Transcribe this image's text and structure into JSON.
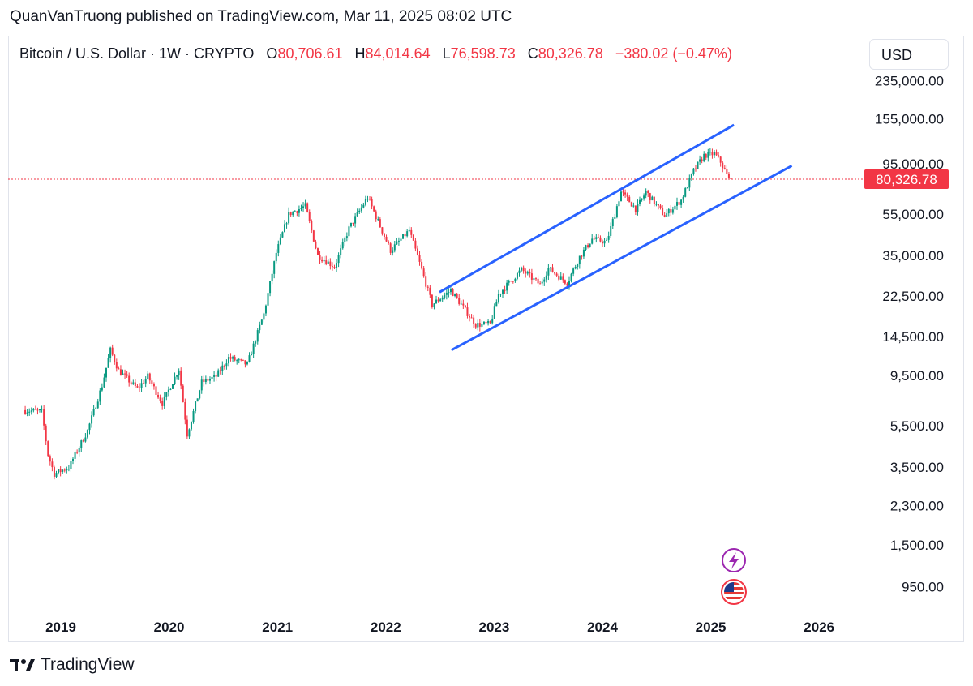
{
  "header": {
    "published": "QuanVanTruong published on TradingView.com, Mar 11, 2025 08:02 UTC"
  },
  "legend": {
    "symbol": "Bitcoin / U.S. Dollar · 1W · CRYPTO",
    "o_key": "O",
    "o_val": "80,706.61",
    "h_key": "H",
    "h_val": "84,014.64",
    "l_key": "L",
    "l_val": "76,598.73",
    "c_key": "C",
    "c_val": "80,326.78",
    "change": "−380.02 (−0.47%)"
  },
  "currency": "USD",
  "price_label": "80,326.78",
  "footer": {
    "brand": "TradingView"
  },
  "icons": [
    "lightning-event-icon",
    "us-flag-event-icon",
    "tradingview-logo-icon"
  ],
  "colors": {
    "up": "#089981",
    "down": "#f23645",
    "channel": "#2962ff",
    "price_line": "#f23645",
    "label_bg": "#f23645",
    "event_purple": "#9c27b0"
  },
  "chart_data": {
    "type": "candlestick",
    "interval": "1W",
    "scale": "log",
    "x_ticks": [
      "2019",
      "2020",
      "2021",
      "2022",
      "2023",
      "2024",
      "2025",
      "2026"
    ],
    "y_ticks": [
      235000,
      155000,
      95000,
      55000,
      35000,
      22500,
      14500,
      9500,
      5500,
      3500,
      2300,
      1500,
      950
    ],
    "y_tick_labels": [
      "235,000.00",
      "155,000.00",
      "95,000.00",
      "55,000.00",
      "35,000.00",
      "22,500.00",
      "14,500.00",
      "9,500.00",
      "5,500.00",
      "3,500.00",
      "2,300.00",
      "1,500.00",
      "950.00"
    ],
    "last_price": 80326.78,
    "price_path": [
      [
        "2018-09-03",
        6500
      ],
      [
        "2018-11-05",
        6400
      ],
      [
        "2018-11-26",
        4000
      ],
      [
        "2018-12-17",
        3250
      ],
      [
        "2019-02-04",
        3500
      ],
      [
        "2019-04-08",
        5200
      ],
      [
        "2019-05-27",
        8500
      ],
      [
        "2019-06-24",
        12500
      ],
      [
        "2019-07-22",
        10000
      ],
      [
        "2019-09-23",
        8200
      ],
      [
        "2019-10-28",
        9400
      ],
      [
        "2019-12-16",
        7000
      ],
      [
        "2020-02-10",
        10200
      ],
      [
        "2020-03-09",
        5000
      ],
      [
        "2020-04-27",
        8800
      ],
      [
        "2020-06-15",
        9400
      ],
      [
        "2020-07-27",
        11500
      ],
      [
        "2020-09-28",
        10700
      ],
      [
        "2020-11-23",
        18500
      ],
      [
        "2021-01-04",
        36000
      ],
      [
        "2021-02-15",
        55000
      ],
      [
        "2021-04-12",
        60000
      ],
      [
        "2021-05-24",
        35000
      ],
      [
        "2021-07-19",
        31000
      ],
      [
        "2021-09-06",
        47000
      ],
      [
        "2021-11-08",
        66000
      ],
      [
        "2022-01-24",
        37000
      ],
      [
        "2022-03-28",
        46000
      ],
      [
        "2022-05-09",
        30000
      ],
      [
        "2022-06-13",
        20500
      ],
      [
        "2022-08-15",
        24000
      ],
      [
        "2022-11-07",
        16500
      ],
      [
        "2022-12-26",
        16600
      ],
      [
        "2023-01-23",
        23000
      ],
      [
        "2023-04-10",
        30000
      ],
      [
        "2023-06-12",
        25500
      ],
      [
        "2023-07-10",
        30500
      ],
      [
        "2023-09-11",
        26000
      ],
      [
        "2023-10-23",
        34500
      ],
      [
        "2023-12-04",
        42000
      ],
      [
        "2024-01-22",
        40500
      ],
      [
        "2024-03-11",
        70000
      ],
      [
        "2024-05-01",
        58000
      ],
      [
        "2024-06-03",
        70000
      ],
      [
        "2024-08-05",
        54000
      ],
      [
        "2024-09-30",
        64000
      ],
      [
        "2024-11-11",
        88000
      ],
      [
        "2024-12-16",
        104000
      ],
      [
        "2025-01-20",
        106000
      ],
      [
        "2025-02-10",
        97000
      ],
      [
        "2025-03-10",
        80326.78
      ]
    ],
    "channel": {
      "upper": [
        [
          "2022-07-01",
          23500
        ],
        [
          "2025-03-20",
          145000
        ]
      ],
      "lower": [
        [
          "2022-08-10",
          12500
        ],
        [
          "2025-10-01",
          93000
        ]
      ]
    },
    "xlabel": "",
    "ylabel": ""
  }
}
